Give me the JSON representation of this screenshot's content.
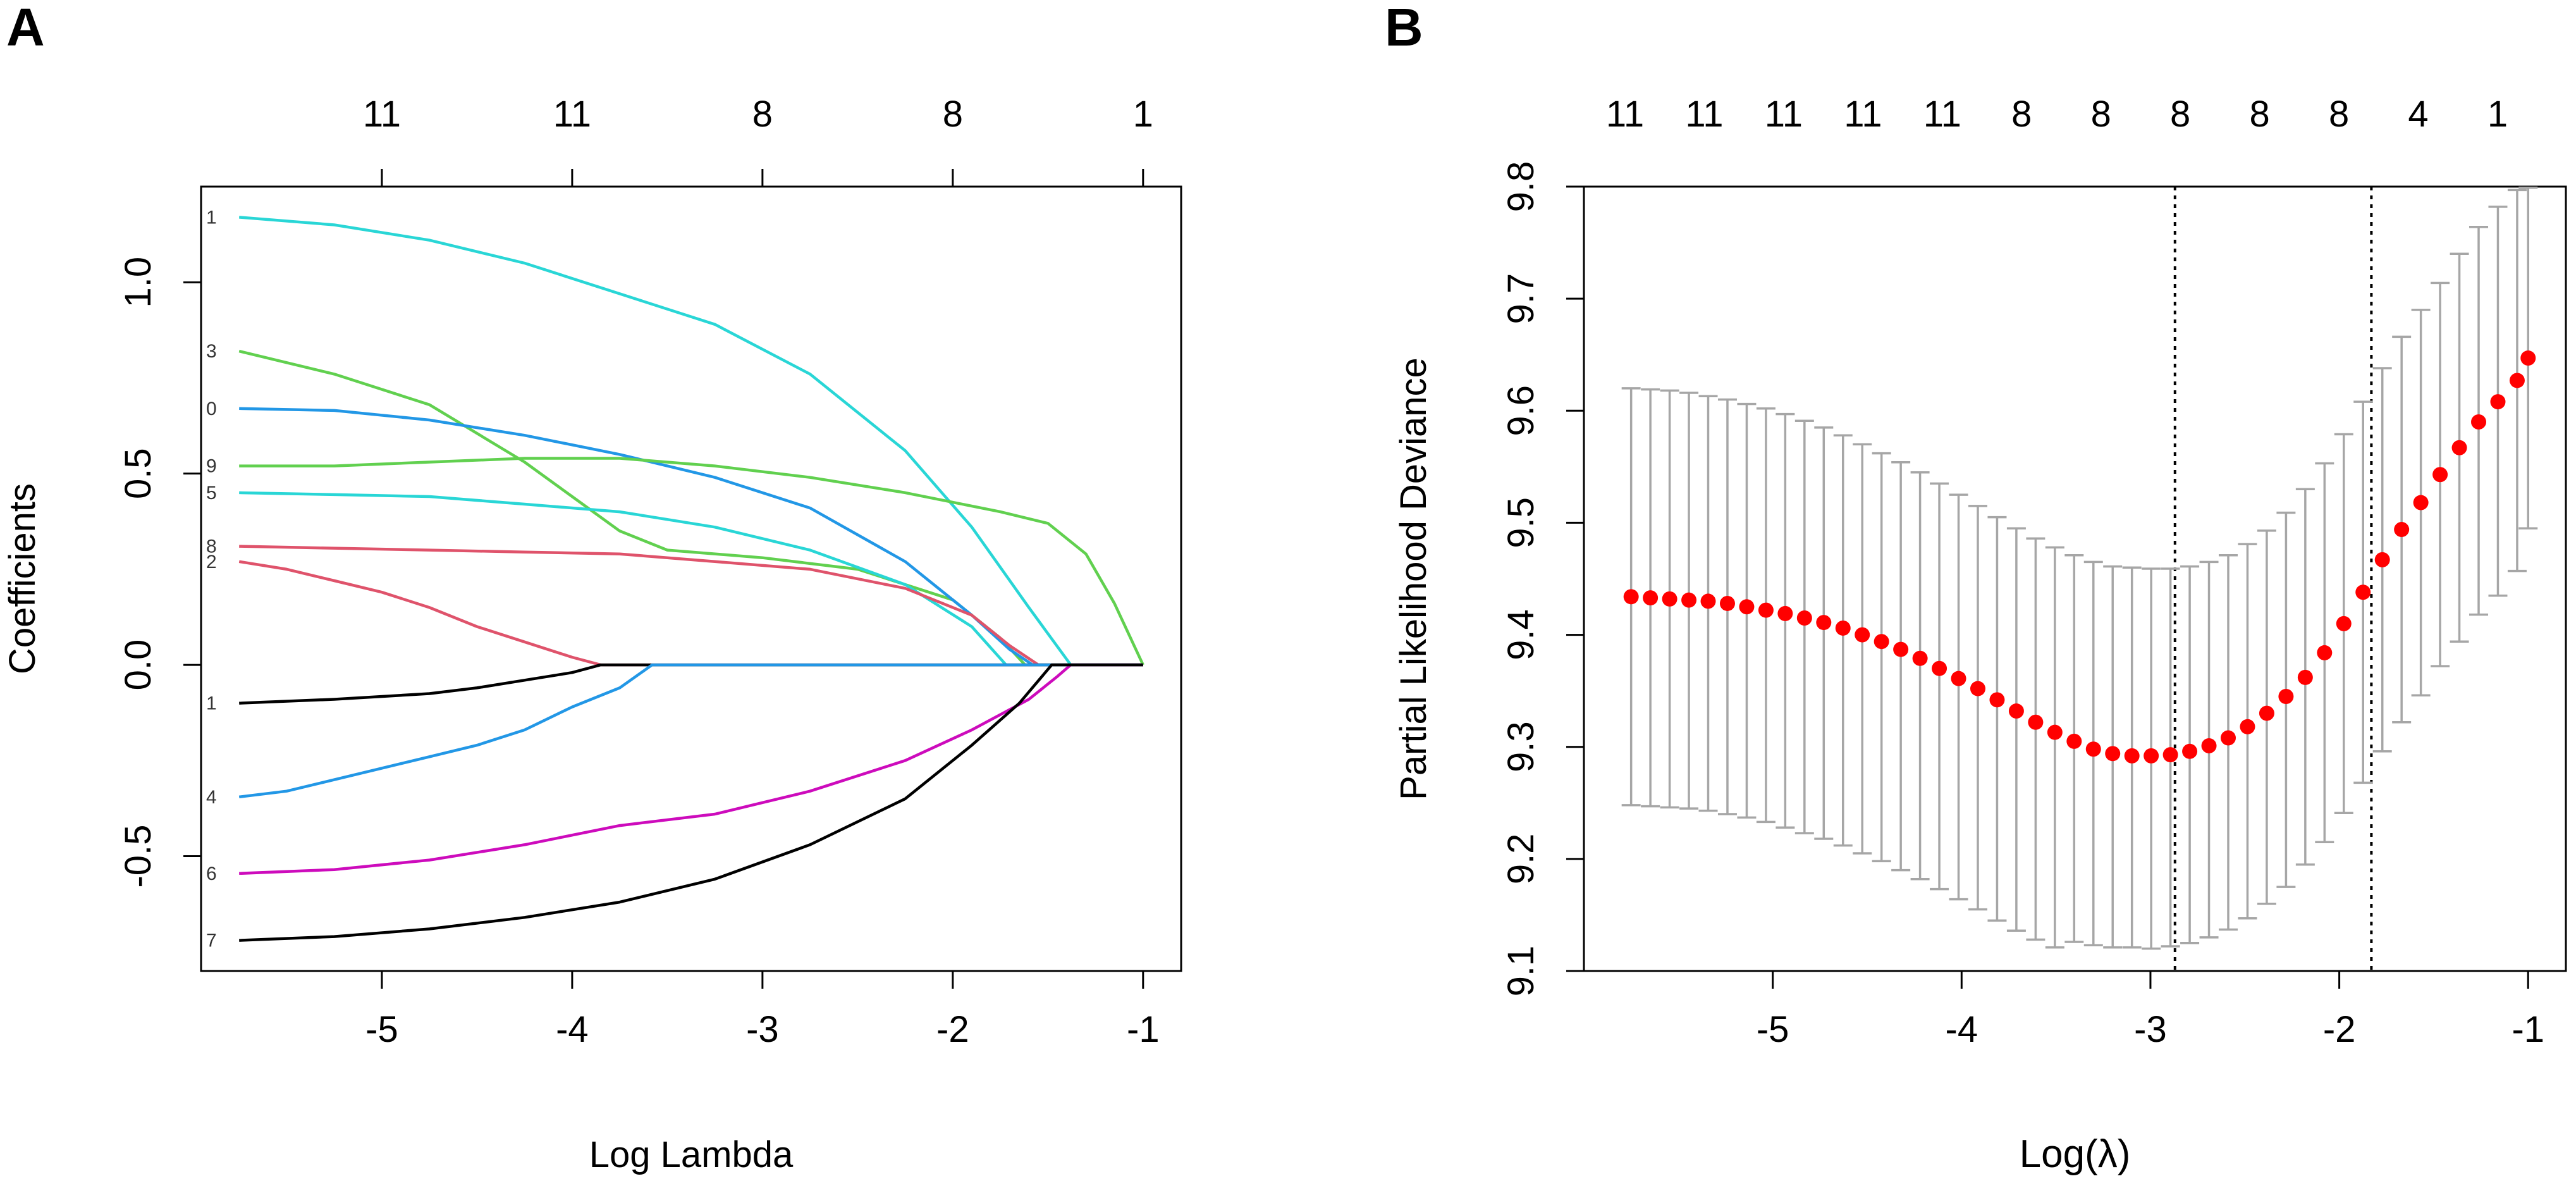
{
  "chart_data": [
    {
      "panel_label": "A",
      "type": "line",
      "xlabel": "Log Lambda",
      "ylabel": "Coefficients",
      "xlim": [
        -5.95,
        -0.8
      ],
      "ylim": [
        -0.8,
        1.25
      ],
      "x_ticks": [
        -5,
        -4,
        -3,
        -2,
        -1
      ],
      "y_ticks": [
        -0.5,
        0.0,
        0.5,
        1.0
      ],
      "y_tick_labels": [
        "-0.5",
        "0.0",
        "0.5",
        "1.0"
      ],
      "top_axis": {
        "positions": [
          -5,
          -4,
          -3,
          -2,
          -1
        ],
        "labels": [
          "11",
          "11",
          "8",
          "8",
          "1"
        ]
      },
      "series": [
        {
          "name": "1",
          "color": "#29D6D6",
          "points": [
            [
              -5.75,
              1.17
            ],
            [
              -5.25,
              1.15
            ],
            [
              -4.75,
              1.11
            ],
            [
              -4.25,
              1.05
            ],
            [
              -3.75,
              0.97
            ],
            [
              -3.25,
              0.89
            ],
            [
              -2.75,
              0.76
            ],
            [
              -2.25,
              0.56
            ],
            [
              -1.9,
              0.36
            ],
            [
              -1.6,
              0.15
            ],
            [
              -1.38,
              0.0
            ],
            [
              -1.0,
              0.0
            ]
          ]
        },
        {
          "name": "3",
          "color": "#61D04F",
          "points": [
            [
              -5.75,
              0.82
            ],
            [
              -5.25,
              0.76
            ],
            [
              -4.75,
              0.68
            ],
            [
              -4.25,
              0.53
            ],
            [
              -4.0,
              0.44
            ],
            [
              -3.75,
              0.35
            ],
            [
              -3.5,
              0.3
            ],
            [
              -3.0,
              0.28
            ],
            [
              -2.5,
              0.25
            ],
            [
              -2.0,
              0.17
            ],
            [
              -1.75,
              0.07
            ],
            [
              -1.62,
              0.0
            ],
            [
              -1.0,
              0.0
            ]
          ]
        },
        {
          "name": "0",
          "color": "#2297E6",
          "points": [
            [
              -5.75,
              0.67
            ],
            [
              -5.25,
              0.665
            ],
            [
              -4.75,
              0.64
            ],
            [
              -4.25,
              0.6
            ],
            [
              -3.75,
              0.55
            ],
            [
              -3.25,
              0.49
            ],
            [
              -2.75,
              0.41
            ],
            [
              -2.25,
              0.27
            ],
            [
              -1.9,
              0.13
            ],
            [
              -1.7,
              0.04
            ],
            [
              -1.58,
              0.0
            ],
            [
              -1.0,
              0.0
            ]
          ]
        },
        {
          "name": "9",
          "color": "#61D04F",
          "points": [
            [
              -5.75,
              0.52
            ],
            [
              -5.25,
              0.52
            ],
            [
              -4.75,
              0.53
            ],
            [
              -4.25,
              0.54
            ],
            [
              -3.75,
              0.54
            ],
            [
              -3.25,
              0.52
            ],
            [
              -2.75,
              0.49
            ],
            [
              -2.25,
              0.45
            ],
            [
              -1.75,
              0.4
            ],
            [
              -1.5,
              0.37
            ],
            [
              -1.3,
              0.29
            ],
            [
              -1.15,
              0.16
            ],
            [
              -1.0,
              0.0
            ]
          ]
        },
        {
          "name": "5",
          "color": "#29D6D6",
          "points": [
            [
              -5.75,
              0.45
            ],
            [
              -5.25,
              0.445
            ],
            [
              -4.75,
              0.44
            ],
            [
              -4.25,
              0.42
            ],
            [
              -3.75,
              0.4
            ],
            [
              -3.25,
              0.36
            ],
            [
              -2.75,
              0.3
            ],
            [
              -2.25,
              0.21
            ],
            [
              -1.9,
              0.1
            ],
            [
              -1.72,
              0.0
            ],
            [
              -1.0,
              0.0
            ]
          ]
        },
        {
          "name": "8",
          "color": "#DF536B",
          "points": [
            [
              -5.75,
              0.31
            ],
            [
              -5.25,
              0.305
            ],
            [
              -4.75,
              0.3
            ],
            [
              -4.25,
              0.295
            ],
            [
              -3.75,
              0.29
            ],
            [
              -3.25,
              0.27
            ],
            [
              -2.75,
              0.25
            ],
            [
              -2.25,
              0.2
            ],
            [
              -1.9,
              0.13
            ],
            [
              -1.7,
              0.05
            ],
            [
              -1.55,
              0.0
            ],
            [
              -1.0,
              0.0
            ]
          ]
        },
        {
          "name": "2",
          "color": "#DF536B",
          "points": [
            [
              -5.75,
              0.27
            ],
            [
              -5.5,
              0.25
            ],
            [
              -5.25,
              0.22
            ],
            [
              -5.0,
              0.19
            ],
            [
              -4.75,
              0.15
            ],
            [
              -4.5,
              0.1
            ],
            [
              -4.25,
              0.06
            ],
            [
              -4.0,
              0.02
            ],
            [
              -3.85,
              0.0
            ],
            [
              -1.0,
              0.0
            ]
          ]
        },
        {
          "name": "1",
          "color": "#000000",
          "points": [
            [
              -5.75,
              -0.1
            ],
            [
              -5.25,
              -0.09
            ],
            [
              -4.75,
              -0.075
            ],
            [
              -4.5,
              -0.06
            ],
            [
              -4.25,
              -0.04
            ],
            [
              -4.0,
              -0.02
            ],
            [
              -3.85,
              0.0
            ],
            [
              -1.0,
              0.0
            ]
          ]
        },
        {
          "name": "4",
          "color": "#2297E6",
          "points": [
            [
              -5.75,
              -0.345
            ],
            [
              -5.5,
              -0.33
            ],
            [
              -5.25,
              -0.3
            ],
            [
              -5.0,
              -0.27
            ],
            [
              -4.75,
              -0.24
            ],
            [
              -4.5,
              -0.21
            ],
            [
              -4.25,
              -0.17
            ],
            [
              -4.0,
              -0.11
            ],
            [
              -3.75,
              -0.06
            ],
            [
              -3.58,
              0.0
            ],
            [
              -1.0,
              0.0
            ]
          ]
        },
        {
          "name": "6",
          "color": "#CD0BBC",
          "points": [
            [
              -5.75,
              -0.545
            ],
            [
              -5.25,
              -0.535
            ],
            [
              -4.75,
              -0.51
            ],
            [
              -4.25,
              -0.47
            ],
            [
              -3.75,
              -0.42
            ],
            [
              -3.25,
              -0.39
            ],
            [
              -2.75,
              -0.33
            ],
            [
              -2.25,
              -0.25
            ],
            [
              -1.9,
              -0.17
            ],
            [
              -1.6,
              -0.09
            ],
            [
              -1.45,
              -0.03
            ],
            [
              -1.38,
              0.0
            ],
            [
              -1.0,
              0.0
            ]
          ]
        },
        {
          "name": "7",
          "color": "#000000",
          "points": [
            [
              -5.75,
              -0.72
            ],
            [
              -5.25,
              -0.71
            ],
            [
              -4.75,
              -0.69
            ],
            [
              -4.25,
              -0.66
            ],
            [
              -3.75,
              -0.62
            ],
            [
              -3.25,
              -0.56
            ],
            [
              -2.75,
              -0.47
            ],
            [
              -2.25,
              -0.35
            ],
            [
              -1.9,
              -0.21
            ],
            [
              -1.65,
              -0.1
            ],
            [
              -1.48,
              0.0
            ],
            [
              -1.0,
              0.0
            ]
          ]
        }
      ]
    },
    {
      "panel_label": "B",
      "type": "scatter",
      "xlabel": "Log(λ)",
      "ylabel": "Partial Likelihood Deviance",
      "xlim": [
        -6.0,
        -0.8
      ],
      "ylim": [
        9.1,
        9.8
      ],
      "x_ticks": [
        -5,
        -4,
        -3,
        -2,
        -1
      ],
      "y_ticks": [
        9.1,
        9.2,
        9.3,
        9.4,
        9.5,
        9.6,
        9.7,
        9.8
      ],
      "y_tick_labels": [
        "9.1",
        "9.2",
        "9.3",
        "9.4",
        "9.5",
        "9.6",
        "9.7",
        "9.8"
      ],
      "top_axis": {
        "labels": [
          "11",
          "11",
          "11",
          "11",
          "11",
          "8",
          "8",
          "8",
          "8",
          "8",
          "4",
          "1"
        ]
      },
      "vlines": [
        -2.87,
        -1.83
      ],
      "point_color": "#FF0000",
      "errorbar_color": "#A6A6A6",
      "x": [
        -5.75,
        -5.648,
        -5.546,
        -5.444,
        -5.342,
        -5.24,
        -5.138,
        -5.036,
        -4.934,
        -4.832,
        -4.73,
        -4.628,
        -4.526,
        -4.424,
        -4.322,
        -4.22,
        -4.118,
        -4.016,
        -3.914,
        -3.812,
        -3.71,
        -3.608,
        -3.506,
        -3.404,
        -3.302,
        -3.2,
        -3.098,
        -2.996,
        -2.894,
        -2.792,
        -2.69,
        -2.588,
        -2.486,
        -2.384,
        -2.282,
        -2.18,
        -2.078,
        -1.976,
        -1.874,
        -1.772,
        -1.67,
        -1.568,
        -1.466,
        -1.364,
        -1.262,
        -1.16,
        -1.058,
        -1.0
      ],
      "y": [
        9.434,
        9.433,
        9.432,
        9.431,
        9.43,
        9.428,
        9.425,
        9.422,
        9.419,
        9.415,
        9.411,
        9.406,
        9.4,
        9.394,
        9.387,
        9.379,
        9.37,
        9.361,
        9.352,
        9.342,
        9.332,
        9.322,
        9.313,
        9.305,
        9.298,
        9.294,
        9.292,
        9.292,
        9.293,
        9.296,
        9.301,
        9.308,
        9.318,
        9.33,
        9.345,
        9.362,
        9.384,
        9.41,
        9.438,
        9.467,
        9.494,
        9.518,
        9.543,
        9.567,
        9.59,
        9.608,
        9.627,
        9.647
      ],
      "upper": [
        9.62,
        9.619,
        9.618,
        9.616,
        9.613,
        9.61,
        9.606,
        9.602,
        9.597,
        9.591,
        9.585,
        9.578,
        9.57,
        9.562,
        9.554,
        9.545,
        9.535,
        9.525,
        9.515,
        9.505,
        9.495,
        9.486,
        9.478,
        9.471,
        9.465,
        9.461,
        9.46,
        9.459,
        9.459,
        9.461,
        9.465,
        9.471,
        9.481,
        9.493,
        9.509,
        9.53,
        9.553,
        9.579,
        9.608,
        9.638,
        9.666,
        9.69,
        9.714,
        9.74,
        9.764,
        9.782,
        9.797,
        9.799
      ],
      "lower": [
        9.248,
        9.247,
        9.246,
        9.245,
        9.243,
        9.24,
        9.237,
        9.233,
        9.228,
        9.223,
        9.218,
        9.212,
        9.205,
        9.198,
        9.19,
        9.182,
        9.173,
        9.164,
        9.155,
        9.145,
        9.136,
        9.128,
        9.121,
        9.126,
        9.123,
        9.121,
        9.121,
        9.12,
        9.122,
        9.125,
        9.13,
        9.137,
        9.147,
        9.16,
        9.175,
        9.195,
        9.215,
        9.241,
        9.268,
        9.296,
        9.322,
        9.346,
        9.372,
        9.394,
        9.418,
        9.435,
        9.457,
        9.495
      ]
    }
  ]
}
